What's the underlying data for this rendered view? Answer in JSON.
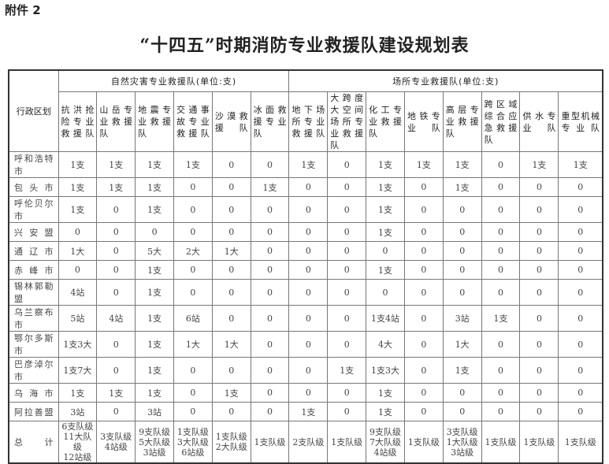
{
  "attachment_label": "附件 2",
  "title": "“十四五”时期消防专业救援队建设规划表",
  "header": {
    "region": "行政区划",
    "group_natural": "自然灾害专业救援队(单位:支)",
    "group_venue": "场所专业救援队(单位:支)",
    "columns": [
      "抗洪抢险专业救援队",
      "山岳专业救援队",
      "地震专业救援队",
      "交通事故专业救援队",
      "沙漠救援队",
      "冰面救援专业队",
      "地下场所专业救援队",
      "大跨度大空间场所专业救援队",
      "化工专业救援队",
      "地铁专业队",
      "高层专业救援队",
      "跨区域综合应急救援队",
      "供水专业队",
      "重型机械专业队"
    ]
  },
  "rows": [
    {
      "region": "呼和浩特市",
      "values": [
        "1支",
        "1支",
        "1支",
        "1支",
        "0",
        "0",
        "1支",
        "0",
        "1支",
        "1支",
        "1支",
        "0",
        "1支",
        "1支"
      ]
    },
    {
      "region": "包头市",
      "values": [
        "1支",
        "1支",
        "1支",
        "0",
        "0",
        "1支",
        "0",
        "0",
        "1支",
        "0",
        "1支",
        "0",
        "0",
        "0"
      ]
    },
    {
      "region": "呼伦贝尔市",
      "values": [
        "1支",
        "0",
        "1支",
        "0",
        "0",
        "0",
        "0",
        "0",
        "1支",
        "0",
        "0",
        "0",
        "0",
        "0"
      ]
    },
    {
      "region": "兴安盟",
      "values": [
        "0",
        "0",
        "0",
        "0",
        "0",
        "0",
        "0",
        "0",
        "1支",
        "0",
        "0",
        "0",
        "0",
        "0"
      ]
    },
    {
      "region": "通辽市",
      "values": [
        "1大",
        "0",
        "5大",
        "2大",
        "1大",
        "0",
        "0",
        "0",
        "0",
        "0",
        "0",
        "0",
        "0",
        "0"
      ]
    },
    {
      "region": "赤峰市",
      "values": [
        "0",
        "0",
        "1支",
        "0",
        "0",
        "0",
        "0",
        "0",
        "1支",
        "0",
        "0",
        "0",
        "0",
        "0"
      ]
    },
    {
      "region": "锡林郭勒盟",
      "values": [
        "4站",
        "0",
        "1支",
        "0",
        "0",
        "0",
        "0",
        "0",
        "0",
        "0",
        "0",
        "0",
        "0",
        "0"
      ]
    },
    {
      "region": "乌兰察布市",
      "values": [
        "5站",
        "4站",
        "1支",
        "6站",
        "0",
        "0",
        "0",
        "0",
        "1支4站",
        "0",
        "3站",
        "1支",
        "0",
        "0"
      ]
    },
    {
      "region": "鄂尔多斯市",
      "values": [
        "1支3大",
        "0",
        "1支",
        "1大",
        "1大",
        "0",
        "0",
        "0",
        "4大",
        "0",
        "1大",
        "0",
        "0",
        "0"
      ]
    },
    {
      "region": "巴彦淖尔市",
      "values": [
        "1支7大",
        "0",
        "1支",
        "0",
        "0",
        "0",
        "0",
        "1支",
        "1支3大",
        "0",
        "1支",
        "0",
        "0",
        "0"
      ]
    },
    {
      "region": "乌海市",
      "values": [
        "1支",
        "1支",
        "1支",
        "0",
        "1支",
        "0",
        "0",
        "0",
        "1支",
        "0",
        "0",
        "0",
        "0",
        "0"
      ]
    },
    {
      "region": "阿拉善盟",
      "values": [
        "3站",
        "0",
        "3站",
        "0",
        "0",
        "0",
        "1支",
        "0",
        "1支",
        "0",
        "0",
        "0",
        "0",
        "0"
      ]
    }
  ],
  "total": {
    "label": "总计",
    "values": [
      "6支队级\n11大队级\n12站级",
      "3支队级\n4站级",
      "9支队级\n5大队级\n3站级",
      "1支队级\n3大队级\n6站级",
      "1支队级\n2大队级",
      "1支队级",
      "2支队级",
      "1支队级",
      "9支队级\n7大队级\n4站级",
      "1支队级",
      "3支队级\n1大队级\n3站级",
      "1支队级",
      "1支队级",
      "1支队级"
    ]
  }
}
